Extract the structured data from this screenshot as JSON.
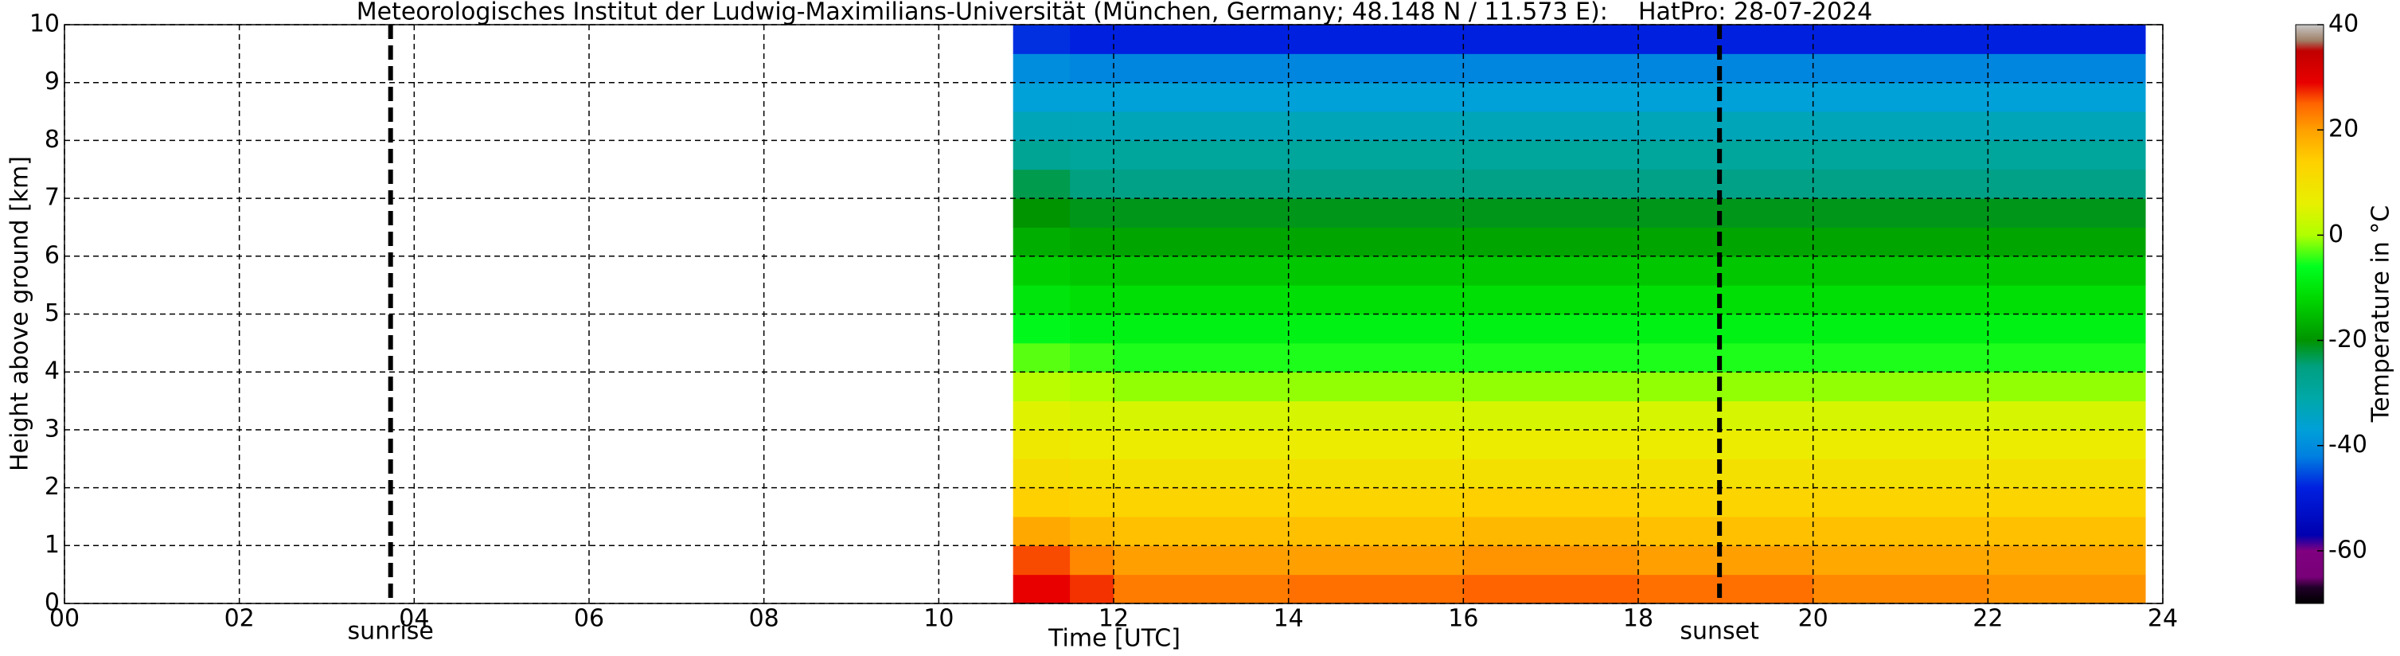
{
  "chart_data": {
    "type": "heatmap",
    "title": "Meteorologisches Institut der Ludwig-Maximilians-Universität (München, Germany; 48.148 N / 11.573 E):    HatPro: 28-07-2024",
    "x_label": "Time [UTC]",
    "y_label": "Height above ground [km]",
    "colorbar_label": "Temperature in °C",
    "xlim": [
      0,
      24
    ],
    "ylim": [
      0,
      10
    ],
    "xticks": [
      {
        "value": 0,
        "label": "00"
      },
      {
        "value": 2,
        "label": "02"
      },
      {
        "value": 4,
        "label": "04"
      },
      {
        "value": 6,
        "label": "06"
      },
      {
        "value": 8,
        "label": "08"
      },
      {
        "value": 10,
        "label": "10"
      },
      {
        "value": 12,
        "label": "12"
      },
      {
        "value": 14,
        "label": "14"
      },
      {
        "value": 16,
        "label": "16"
      },
      {
        "value": 18,
        "label": "18"
      },
      {
        "value": 20,
        "label": "20"
      },
      {
        "value": 22,
        "label": "22"
      },
      {
        "value": 24,
        "label": "24"
      }
    ],
    "yticks": [
      0,
      1,
      2,
      3,
      4,
      5,
      6,
      7,
      8,
      9,
      10
    ],
    "grid": true,
    "clim": [
      -70,
      40
    ],
    "cticks": [
      -60,
      -40,
      -20,
      0,
      20,
      40
    ],
    "colorscale": [
      [
        -70,
        "#000000"
      ],
      [
        -67,
        "#200028"
      ],
      [
        -65,
        "#780078"
      ],
      [
        -60,
        "#800080"
      ],
      [
        -57,
        "#0000b0"
      ],
      [
        -48,
        "#0020e0"
      ],
      [
        -42,
        "#0080e0"
      ],
      [
        -37,
        "#00a0d8"
      ],
      [
        -31,
        "#00a8a8"
      ],
      [
        -25,
        "#00a080"
      ],
      [
        -20,
        "#009400"
      ],
      [
        -12,
        "#00d800"
      ],
      [
        -6,
        "#00ff20"
      ],
      [
        0,
        "#b0ff00"
      ],
      [
        6,
        "#e8f000"
      ],
      [
        14,
        "#ffd000"
      ],
      [
        20,
        "#ffa000"
      ],
      [
        25,
        "#ff6400"
      ],
      [
        29,
        "#e80000"
      ],
      [
        35,
        "#c00000"
      ],
      [
        37,
        "#a08068"
      ],
      [
        40,
        "#c8c8c8"
      ]
    ],
    "x_edges": [
      10.85,
      11.5,
      12,
      14,
      16,
      18,
      20,
      22,
      23.8
    ],
    "y_edges": [
      0,
      0.5,
      1,
      1.5,
      2,
      2.5,
      3,
      3.5,
      4,
      4.5,
      5,
      5.5,
      6,
      6.5,
      7,
      7.5,
      8,
      8.5,
      9,
      9.5,
      10
    ],
    "z": [
      [
        29,
        27,
        23,
        24,
        25,
        24,
        22,
        21
      ],
      [
        26,
        22,
        20,
        20,
        21,
        20,
        19,
        19
      ],
      [
        19,
        17,
        16,
        16,
        17,
        16,
        16,
        16
      ],
      [
        14,
        13,
        13,
        13,
        14,
        13,
        13,
        13
      ],
      [
        11,
        10,
        10,
        10,
        10,
        10,
        10,
        10
      ],
      [
        8,
        7,
        7,
        7,
        7,
        7,
        7,
        7
      ],
      [
        5,
        4,
        4,
        4,
        4,
        4,
        4,
        4
      ],
      [
        1,
        0,
        -1,
        -1,
        -1,
        -1,
        -1,
        -1
      ],
      [
        -3,
        -4,
        -5,
        -5,
        -5,
        -5,
        -5,
        -5
      ],
      [
        -7,
        -8,
        -8,
        -8,
        -8,
        -8,
        -8,
        -8
      ],
      [
        -10,
        -11,
        -11,
        -11,
        -11,
        -11,
        -11,
        -11
      ],
      [
        -13,
        -14,
        -14,
        -14,
        -14,
        -14,
        -14,
        -14
      ],
      [
        -17,
        -18,
        -18,
        -18,
        -18,
        -18,
        -18,
        -18
      ],
      [
        -20,
        -21,
        -21,
        -21,
        -21,
        -21,
        -21,
        -21
      ],
      [
        -23,
        -25,
        -26,
        -26,
        -26,
        -26,
        -26,
        -26
      ],
      [
        -28,
        -29,
        -29,
        -29,
        -29,
        -29,
        -29,
        -29
      ],
      [
        -33,
        -33,
        -33,
        -33,
        -33,
        -33,
        -33,
        -33
      ],
      [
        -37,
        -37,
        -37,
        -37,
        -37,
        -37,
        -37,
        -37
      ],
      [
        -40,
        -41,
        -41,
        -41,
        -41,
        -41,
        -41,
        -41
      ],
      [
        -47,
        -48,
        -48,
        -48,
        -48,
        -48,
        -48,
        -48
      ]
    ],
    "annotations": [
      {
        "text": "sunrise",
        "x": 3.73
      },
      {
        "text": "sunset",
        "x": 18.93
      }
    ]
  }
}
